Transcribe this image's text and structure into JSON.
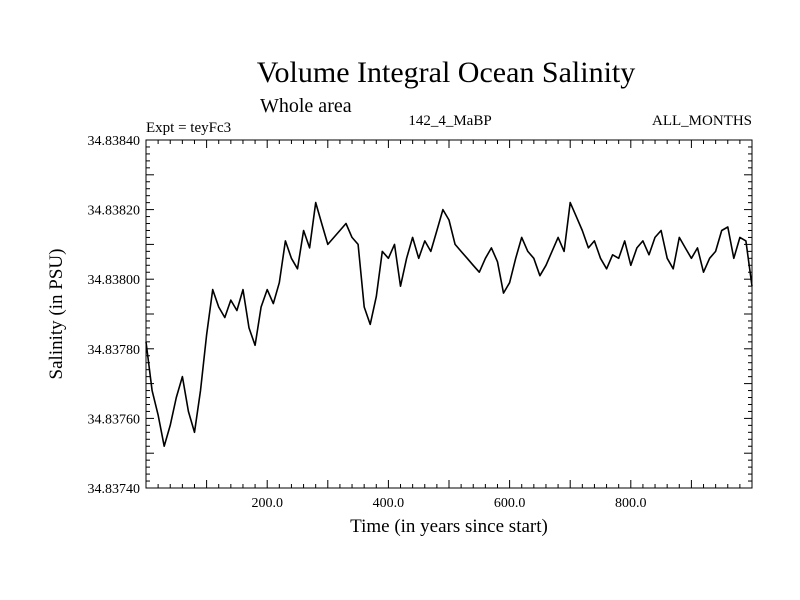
{
  "chart_data": {
    "type": "line",
    "title": "Volume Integral Ocean Salinity",
    "subtitle": "Whole area",
    "header_left": "Expt = teyFc3",
    "header_center": "142_4_MaBP",
    "header_right": "ALL_MONTHS",
    "xlabel": "Time (in years since start)",
    "ylabel": "Salinity (in PSU)",
    "xlim": [
      0,
      1000
    ],
    "ylim": [
      34.8374,
      34.8384
    ],
    "x_ticks": [
      200,
      400,
      600,
      800
    ],
    "x_tick_labels": [
      "200.0",
      "400.0",
      "600.0",
      "800.0"
    ],
    "y_ticks": [
      34.8374,
      34.8376,
      34.8378,
      34.838,
      34.8382,
      34.8384
    ],
    "y_tick_labels": [
      "34.83740",
      "34.83760",
      "34.83780",
      "34.83800",
      "34.83820",
      "34.83840"
    ],
    "grid": false,
    "series": [
      {
        "name": "salinity",
        "color": "#000000",
        "x": [
          0,
          10,
          20,
          30,
          40,
          50,
          60,
          70,
          80,
          90,
          100,
          110,
          120,
          130,
          140,
          150,
          160,
          170,
          180,
          190,
          200,
          210,
          220,
          230,
          240,
          250,
          260,
          270,
          280,
          290,
          300,
          310,
          320,
          330,
          340,
          350,
          360,
          370,
          380,
          390,
          400,
          410,
          420,
          430,
          440,
          450,
          460,
          470,
          480,
          490,
          500,
          510,
          520,
          530,
          540,
          550,
          560,
          570,
          580,
          590,
          600,
          610,
          620,
          630,
          640,
          650,
          660,
          670,
          680,
          690,
          700,
          710,
          720,
          730,
          740,
          750,
          760,
          770,
          780,
          790,
          800,
          810,
          820,
          830,
          840,
          850,
          860,
          870,
          880,
          890,
          900,
          910,
          920,
          930,
          940,
          950,
          960,
          970,
          980,
          990,
          1000
        ],
        "values": [
          34.83782,
          34.83768,
          34.83761,
          34.83752,
          34.83758,
          34.83766,
          34.83772,
          34.83762,
          34.83756,
          34.83768,
          34.83784,
          34.83797,
          34.83792,
          34.83789,
          34.83794,
          34.83791,
          34.83797,
          34.83786,
          34.83781,
          34.83792,
          34.83797,
          34.83793,
          34.83799,
          34.83811,
          34.83806,
          34.83803,
          34.83814,
          34.83809,
          34.83822,
          34.83816,
          34.8381,
          34.83812,
          34.83814,
          34.83816,
          34.83812,
          34.8381,
          34.83792,
          34.83787,
          34.83795,
          34.83808,
          34.83806,
          34.8381,
          34.83798,
          34.83806,
          34.83812,
          34.83806,
          34.83811,
          34.83808,
          34.83814,
          34.8382,
          34.83817,
          34.8381,
          34.83808,
          34.83806,
          34.83804,
          34.83802,
          34.83806,
          34.83809,
          34.83805,
          34.83796,
          34.83799,
          34.83806,
          34.83812,
          34.83808,
          34.83806,
          34.83801,
          34.83804,
          34.83808,
          34.83812,
          34.83808,
          34.83822,
          34.83818,
          34.83814,
          34.83809,
          34.83811,
          34.83806,
          34.83803,
          34.83807,
          34.83806,
          34.83811,
          34.83804,
          34.83809,
          34.83811,
          34.83807,
          34.83812,
          34.83814,
          34.83806,
          34.83803,
          34.83812,
          34.83809,
          34.83806,
          34.83809,
          34.83802,
          34.83806,
          34.83808,
          34.83814,
          34.83815,
          34.83806,
          34.83812,
          34.83811,
          34.83798
        ]
      }
    ]
  }
}
